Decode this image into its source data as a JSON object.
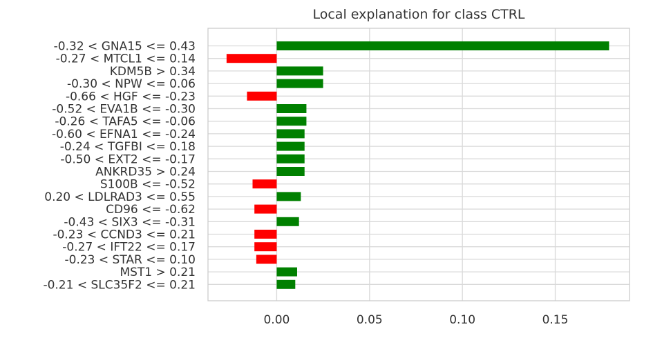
{
  "chart_data": {
    "type": "bar",
    "orientation": "horizontal",
    "title": "Local explanation for class CTRL",
    "xlabel": "",
    "ylabel": "",
    "xlim": [
      -0.037,
      0.19
    ],
    "xticks": [
      0.0,
      0.05,
      0.1,
      0.15
    ],
    "xtick_labels": [
      "0.00",
      "0.05",
      "0.10",
      "0.15"
    ],
    "grid": true,
    "colors": {
      "positive": "#008000",
      "negative": "#ff0000"
    },
    "categories": [
      "-0.32 < GNA15 <= 0.43",
      "-0.27 < MTCL1 <= 0.14",
      "KDM5B > 0.34",
      "-0.30 < NPW <= 0.06",
      "-0.66 < HGF <= -0.23",
      "-0.52 < EVA1B <= -0.30",
      "-0.26 < TAFA5 <= -0.06",
      "-0.60 < EFNA1 <= -0.24",
      "-0.24 < TGFBI <= 0.18",
      "-0.50 < EXT2 <= -0.17",
      "ANKRD35 > 0.24",
      "S100B <= -0.52",
      "0.20 < LDLRAD3 <= 0.55",
      "CD96 <= -0.62",
      "-0.43 < SIX3 <= -0.31",
      "-0.23 < CCND3 <= 0.21",
      "-0.27 < IFT22 <= 0.17",
      "-0.23 < STAR <= 0.10",
      "MST1 > 0.21",
      "-0.21 < SLC35F2 <= 0.21"
    ],
    "values": [
      0.179,
      -0.027,
      0.025,
      0.025,
      -0.016,
      0.016,
      0.016,
      0.015,
      0.015,
      0.015,
      0.015,
      -0.013,
      0.013,
      -0.012,
      0.012,
      -0.012,
      -0.012,
      -0.011,
      0.011,
      0.01
    ]
  }
}
